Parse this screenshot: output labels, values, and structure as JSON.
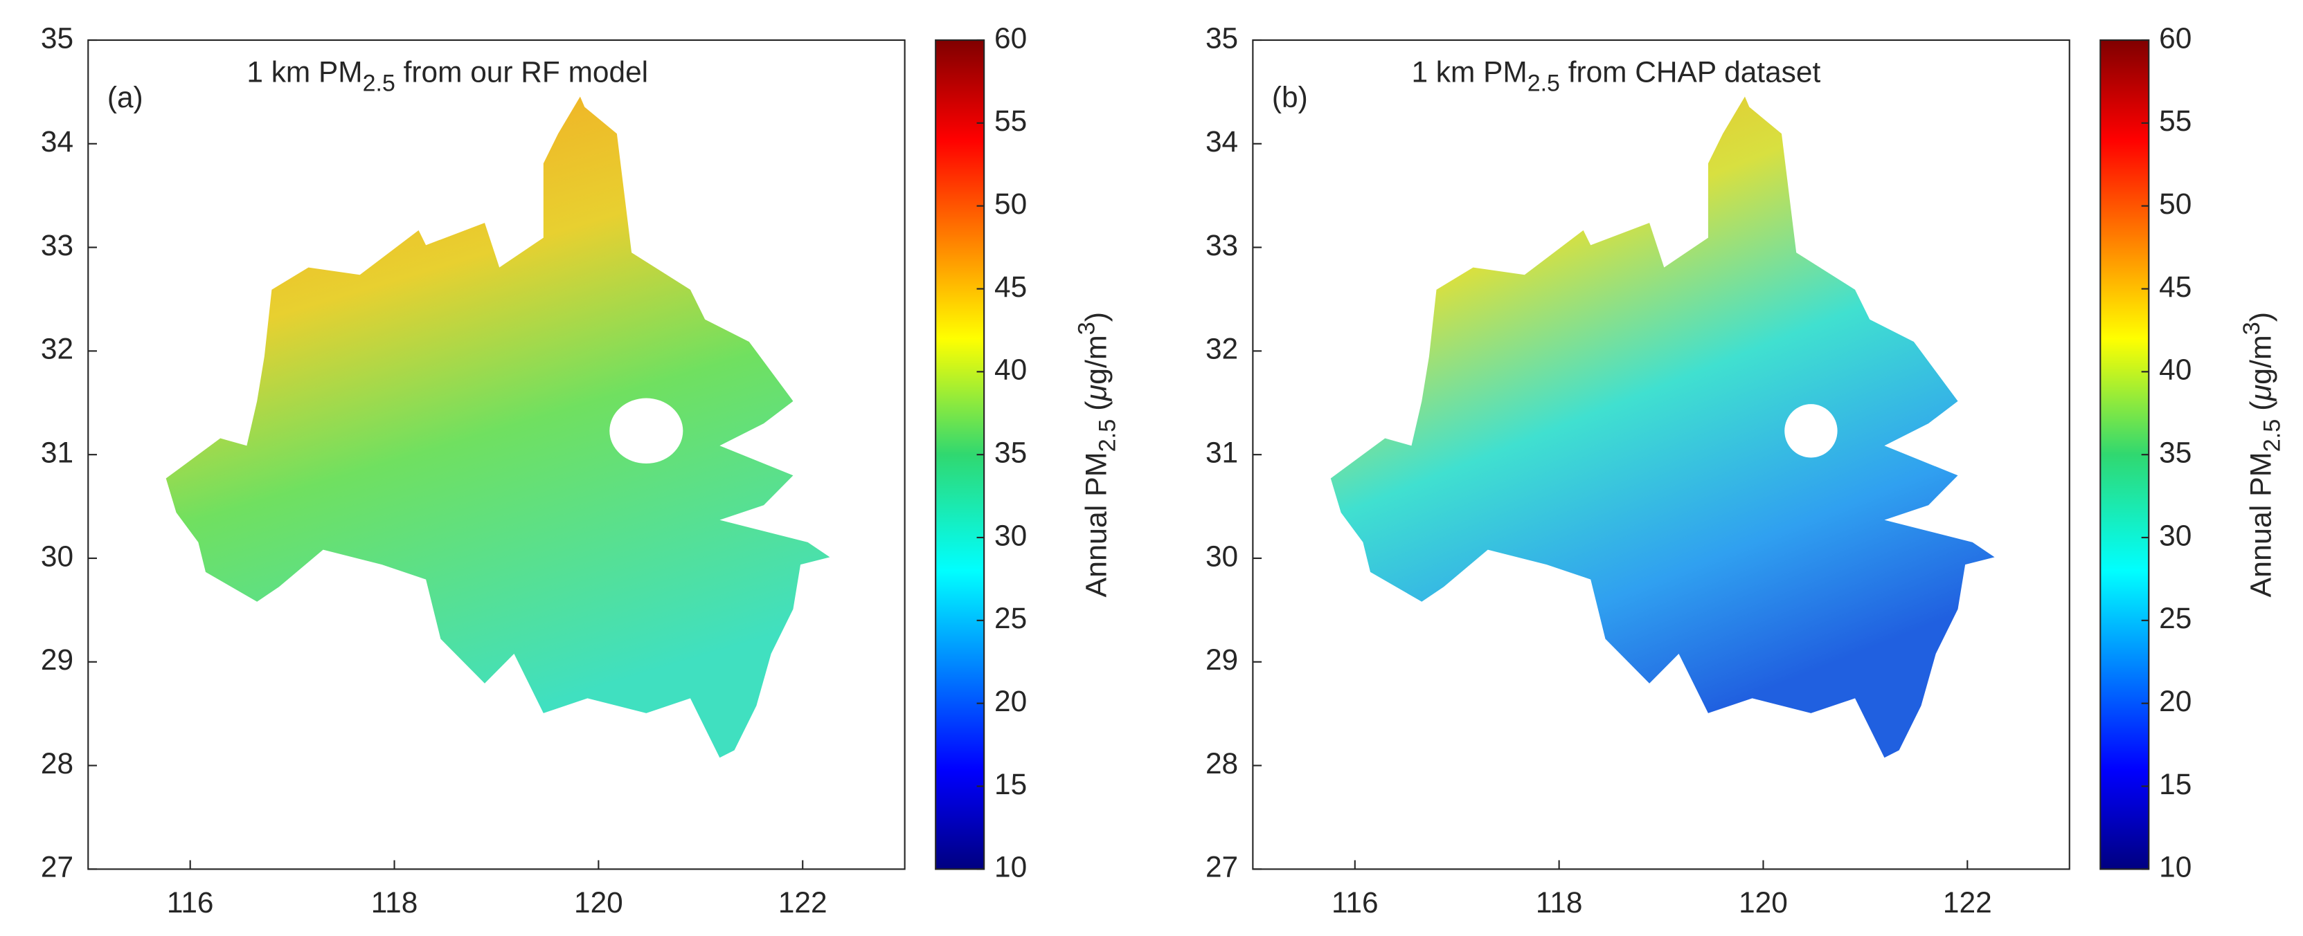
{
  "panels": [
    {
      "label": "(a)",
      "title": [
        "1 km PM",
        "2.5",
        " from our RF model"
      ]
    },
    {
      "label": "(b)",
      "title": [
        "1 km PM",
        "2.5",
        " from CHAP dataset"
      ]
    }
  ],
  "xlim": [
    115,
    123
  ],
  "xticks": [
    116,
    118,
    120,
    122
  ],
  "ylim": [
    27,
    35
  ],
  "yticks": [
    27,
    28,
    29,
    30,
    31,
    32,
    33,
    34,
    35
  ],
  "colorbar": {
    "lim": [
      10,
      60
    ],
    "ticks": [
      10,
      15,
      20,
      25,
      30,
      35,
      40,
      45,
      50,
      55,
      60
    ],
    "label": [
      "Annual PM",
      "2.5",
      " (",
      "μ",
      "g/m",
      "3",
      ")"
    ]
  }
}
